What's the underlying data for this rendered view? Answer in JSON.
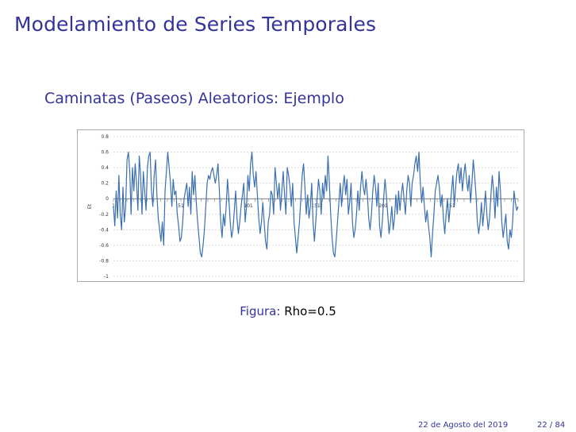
{
  "slide": {
    "frame_title": "Modelamiento de Series Temporales",
    "block_title": "Caminatas (Paseos) Aleatorios: Ejemplo",
    "caption_label": "Figura:",
    "caption_text": "Rho=0.5",
    "footer_date": "22 de Agosto del 2019",
    "footer_page": "22 / 84"
  },
  "chart_data": {
    "type": "line",
    "title": "",
    "xlabel": "",
    "ylabel": "Et",
    "ylim": [
      -1,
      0.8
    ],
    "yticks": [
      0.8,
      0.6,
      0.4,
      0.2,
      0,
      -0.2,
      -0.4,
      -0.6,
      -0.8,
      -1
    ],
    "ytick_labels": [
      "0.8",
      "0.6",
      "0.4",
      "0.2",
      "0",
      "-0.2",
      "-0.4",
      "-0.6",
      "-0.8",
      "-1"
    ],
    "xlim": [
      1,
      301
    ],
    "xticks": [
      1,
      51,
      101,
      151,
      201,
      251
    ],
    "xtick_labels": [
      "1",
      "51",
      "101",
      "151",
      "201",
      "251"
    ],
    "grid": true,
    "line_color": "#3a6fb0",
    "series": [
      {
        "values": [
          -0.1,
          -0.35,
          0.1,
          -0.25,
          0.3,
          -0.2,
          -0.4,
          0.15,
          -0.3,
          -0.1,
          0.5,
          0.6,
          0.35,
          -0.2,
          0.4,
          0.1,
          0.45,
          0.2,
          -0.15,
          0.55,
          0.3,
          -0.2,
          0.35,
          0.1,
          -0.15,
          0.4,
          0.55,
          0.6,
          0.1,
          -0.1,
          0.3,
          0.5,
          0.05,
          -0.25,
          -0.4,
          -0.55,
          -0.3,
          -0.6,
          0.1,
          0.35,
          0.6,
          0.4,
          0.2,
          -0.1,
          0.25,
          0.05,
          0.1,
          -0.2,
          -0.35,
          -0.55,
          -0.5,
          -0.3,
          0.0,
          0.1,
          0.2,
          -0.1,
          0.15,
          -0.2,
          0.35,
          0.05,
          0.3,
          -0.05,
          -0.3,
          -0.5,
          -0.7,
          -0.75,
          -0.6,
          -0.4,
          -0.1,
          0.2,
          0.3,
          0.25,
          0.35,
          0.4,
          0.3,
          0.2,
          0.3,
          0.45,
          0.1,
          -0.3,
          -0.5,
          -0.2,
          -0.35,
          -0.1,
          0.25,
          0.0,
          -0.3,
          -0.5,
          -0.4,
          -0.15,
          0.1,
          -0.25,
          -0.45,
          -0.3,
          -0.1,
          0.05,
          0.2,
          -0.3,
          -0.1,
          0.3,
          0.1,
          0.45,
          0.6,
          0.3,
          0.15,
          0.35,
          0.05,
          -0.25,
          -0.45,
          -0.3,
          -0.05,
          -0.3,
          -0.55,
          -0.65,
          -0.3,
          -0.2,
          0.1,
          0.05,
          -0.2,
          0.4,
          0.2,
          0.0,
          0.2,
          -0.15,
          0.1,
          0.35,
          0.05,
          -0.2,
          0.4,
          0.3,
          0.15,
          -0.1,
          0.2,
          -0.3,
          -0.5,
          -0.7,
          -0.5,
          -0.3,
          0.0,
          0.3,
          0.45,
          0.15,
          -0.2,
          0.05,
          -0.25,
          -0.1,
          0.2,
          -0.3,
          -0.55,
          -0.3,
          0.0,
          0.25,
          0.1,
          -0.2,
          0.2,
          0.0,
          0.3,
          0.1,
          0.55,
          0.2,
          -0.2,
          -0.5,
          -0.7,
          -0.75,
          -0.55,
          -0.3,
          -0.05,
          0.2,
          -0.1,
          0.15,
          0.3,
          0.05,
          0.25,
          -0.2,
          -0.05,
          0.2,
          -0.3,
          -0.5,
          -0.4,
          -0.2,
          0.1,
          -0.15,
          0.15,
          0.35,
          0.15,
          0.05,
          0.25,
          0.05,
          -0.25,
          -0.4,
          -0.2,
          0.1,
          0.3,
          0.15,
          -0.1,
          0.2,
          -0.35,
          -0.5,
          -0.3,
          0.0,
          0.25,
          0.05,
          -0.2,
          -0.45,
          -0.3,
          -0.1,
          -0.4,
          -0.25,
          0.05,
          -0.2,
          0.1,
          -0.15,
          0.05,
          0.2,
          0.0,
          -0.2,
          0.1,
          0.3,
          0.2,
          -0.1,
          0.2,
          0.3,
          0.45,
          0.55,
          0.35,
          0.6,
          0.2,
          -0.05,
          0.15,
          -0.1,
          -0.3,
          -0.15,
          -0.35,
          -0.5,
          -0.75,
          -0.45,
          -0.2,
          0.1,
          0.2,
          0.3,
          0.15,
          -0.1,
          0.05,
          -0.25,
          -0.45,
          -0.2,
          0.0,
          -0.3,
          -0.1,
          0.1,
          0.3,
          -0.1,
          0.15,
          0.35,
          0.45,
          0.2,
          0.4,
          0.1,
          0.3,
          0.45,
          0.25,
          0.1,
          0.3,
          -0.05,
          0.2,
          0.5,
          0.3,
          0.05,
          -0.3,
          -0.45,
          -0.3,
          -0.05,
          -0.35,
          -0.15,
          0.1,
          -0.2,
          -0.4,
          -0.25,
          0.05,
          0.3,
          0.1,
          -0.25,
          0.15,
          -0.1,
          0.35,
          0.1,
          -0.3,
          -0.5,
          -0.35,
          -0.2,
          -0.55,
          -0.65,
          -0.4,
          -0.5,
          -0.3,
          0.1,
          -0.05,
          -0.15,
          -0.1
        ]
      }
    ]
  }
}
